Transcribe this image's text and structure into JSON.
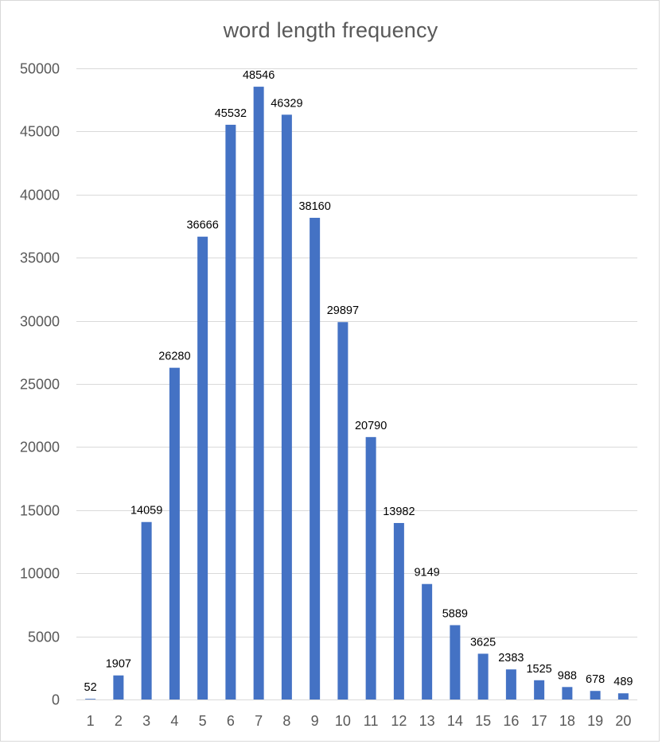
{
  "chart_data": {
    "type": "bar",
    "title": "word length frequency",
    "xlabel": "",
    "ylabel": "",
    "categories": [
      "1",
      "2",
      "3",
      "4",
      "5",
      "6",
      "7",
      "8",
      "9",
      "10",
      "11",
      "12",
      "13",
      "14",
      "15",
      "16",
      "17",
      "18",
      "19",
      "20"
    ],
    "values": [
      52,
      1907,
      14059,
      26280,
      36666,
      45532,
      48546,
      46329,
      38160,
      29897,
      20790,
      13982,
      9149,
      5889,
      3625,
      2383,
      1525,
      988,
      678,
      489
    ],
    "ylim": [
      0,
      50000
    ],
    "yticks": [
      0,
      5000,
      10000,
      15000,
      20000,
      25000,
      30000,
      35000,
      40000,
      45000,
      50000
    ],
    "grid": true,
    "legend": "none",
    "colors": {
      "bar": "#4472c4",
      "grid": "#d9d9d9",
      "axis": "#d9d9d9"
    }
  }
}
